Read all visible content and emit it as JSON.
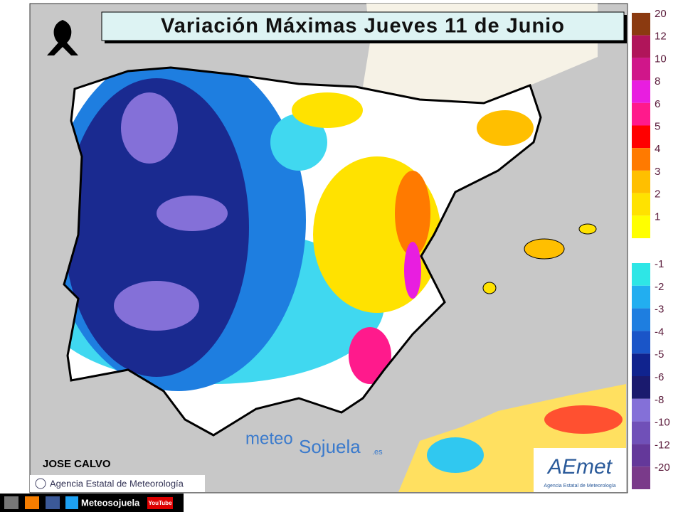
{
  "header": {
    "title": "Variación Máximas Jueves 11 de Junio"
  },
  "legend": {
    "warm": [
      {
        "label": "20",
        "color": "#8b3a10"
      },
      {
        "label": "12",
        "color": "#b0155a"
      },
      {
        "label": "10",
        "color": "#d0168a"
      },
      {
        "label": "8",
        "color": "#e81ee0"
      },
      {
        "label": "6",
        "color": "#ff1a8c"
      },
      {
        "label": "5",
        "color": "#ff0000"
      },
      {
        "label": "4",
        "color": "#ff7a00"
      },
      {
        "label": "3",
        "color": "#ffbf00"
      },
      {
        "label": "2",
        "color": "#ffe200"
      },
      {
        "label": "1",
        "color": "#ffff00"
      }
    ],
    "cold": [
      {
        "label": "-1",
        "color": "#2ee6e6"
      },
      {
        "label": "-2",
        "color": "#22aef0"
      },
      {
        "label": "-3",
        "color": "#1e7ee0"
      },
      {
        "label": "-4",
        "color": "#1a55c8"
      },
      {
        "label": "-5",
        "color": "#10238e"
      },
      {
        "label": "-6",
        "color": "#1a1a6e"
      },
      {
        "label": "-8",
        "color": "#8470d8"
      },
      {
        "label": "-10",
        "color": "#7050b8"
      },
      {
        "label": "-12",
        "color": "#64389a"
      },
      {
        "label": "-20",
        "color": "#7a3a8a"
      }
    ]
  },
  "credits": {
    "author": "JOSE CALVO",
    "source": "Agencia Estatal de Meteorología",
    "watermark": {
      "part1": "meteo",
      "part2": "Sojuela",
      "part3": ".es"
    },
    "logo": {
      "name": "AEmet",
      "caption": "Agencia Estatal de Meteorología"
    },
    "footer": {
      "handle": "Meteosojuela",
      "youtube": "YouTube"
    }
  }
}
